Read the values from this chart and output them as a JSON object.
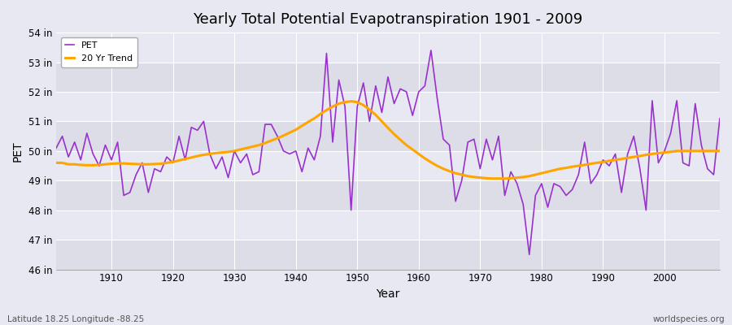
{
  "title": "Yearly Total Potential Evapotranspiration 1901 - 2009",
  "xlabel": "Year",
  "ylabel": "PET",
  "subtitle_left": "Latitude 18.25 Longitude -88.25",
  "subtitle_right": "worldspecies.org",
  "pet_color": "#9932CC",
  "trend_color": "#FFA500",
  "bg_dark": "#DDDDE8",
  "bg_light": "#E8E8F2",
  "grid_color": "#ffffff",
  "ylim_low": 46,
  "ylim_high": 54,
  "years": [
    1901,
    1902,
    1903,
    1904,
    1905,
    1906,
    1907,
    1908,
    1909,
    1910,
    1911,
    1912,
    1913,
    1914,
    1915,
    1916,
    1917,
    1918,
    1919,
    1920,
    1921,
    1922,
    1923,
    1924,
    1925,
    1926,
    1927,
    1928,
    1929,
    1930,
    1931,
    1932,
    1933,
    1934,
    1935,
    1936,
    1937,
    1938,
    1939,
    1940,
    1941,
    1942,
    1943,
    1944,
    1945,
    1946,
    1947,
    1948,
    1949,
    1950,
    1951,
    1952,
    1953,
    1954,
    1955,
    1956,
    1957,
    1958,
    1959,
    1960,
    1961,
    1962,
    1963,
    1964,
    1965,
    1966,
    1967,
    1968,
    1969,
    1970,
    1971,
    1972,
    1973,
    1974,
    1975,
    1976,
    1977,
    1978,
    1979,
    1980,
    1981,
    1982,
    1983,
    1984,
    1985,
    1986,
    1987,
    1988,
    1989,
    1990,
    1991,
    1992,
    1993,
    1994,
    1995,
    1996,
    1997,
    1998,
    1999,
    2000,
    2001,
    2002,
    2003,
    2004,
    2005,
    2006,
    2007,
    2008,
    2009
  ],
  "pet_values": [
    50.1,
    50.5,
    49.8,
    50.3,
    49.7,
    50.6,
    49.9,
    49.5,
    50.2,
    49.7,
    50.3,
    48.5,
    48.6,
    49.2,
    49.6,
    48.6,
    49.4,
    49.3,
    49.8,
    49.6,
    50.5,
    49.7,
    50.8,
    50.7,
    51.0,
    49.9,
    49.4,
    49.8,
    49.1,
    50.0,
    49.6,
    49.9,
    49.2,
    49.3,
    50.9,
    50.9,
    50.5,
    50.0,
    49.9,
    50.0,
    49.3,
    50.1,
    49.7,
    50.5,
    53.3,
    50.3,
    52.4,
    51.5,
    48.0,
    51.5,
    52.3,
    51.0,
    52.2,
    51.3,
    52.5,
    51.6,
    52.1,
    52.0,
    51.2,
    52.0,
    52.2,
    53.4,
    51.8,
    50.4,
    50.2,
    48.3,
    49.0,
    50.3,
    50.4,
    49.4,
    50.4,
    49.7,
    50.5,
    48.5,
    49.3,
    48.9,
    48.2,
    46.5,
    48.5,
    48.9,
    48.1,
    48.9,
    48.8,
    48.5,
    48.7,
    49.2,
    50.3,
    48.9,
    49.2,
    49.7,
    49.5,
    49.9,
    48.6,
    49.9,
    50.5,
    49.4,
    48.0,
    51.7,
    49.6,
    50.0,
    50.6,
    51.7,
    49.6,
    49.5,
    51.6,
    50.2,
    49.4,
    49.2,
    51.1
  ],
  "trend_values": [
    49.6,
    49.6,
    49.55,
    49.55,
    49.53,
    49.52,
    49.52,
    49.53,
    49.55,
    49.57,
    49.58,
    49.58,
    49.57,
    49.56,
    49.55,
    49.55,
    49.56,
    49.57,
    49.6,
    49.63,
    49.68,
    49.73,
    49.78,
    49.83,
    49.87,
    49.9,
    49.93,
    49.95,
    49.97,
    50.0,
    50.05,
    50.1,
    50.15,
    50.2,
    50.27,
    50.35,
    50.43,
    50.52,
    50.62,
    50.72,
    50.85,
    50.98,
    51.1,
    51.25,
    51.38,
    51.5,
    51.6,
    51.65,
    51.68,
    51.65,
    51.55,
    51.4,
    51.22,
    51.0,
    50.78,
    50.57,
    50.38,
    50.2,
    50.05,
    49.9,
    49.75,
    49.62,
    49.5,
    49.4,
    49.32,
    49.25,
    49.2,
    49.15,
    49.12,
    49.1,
    49.08,
    49.07,
    49.07,
    49.07,
    49.08,
    49.1,
    49.12,
    49.15,
    49.2,
    49.25,
    49.3,
    49.35,
    49.4,
    49.43,
    49.47,
    49.5,
    49.53,
    49.57,
    49.6,
    49.63,
    49.67,
    49.7,
    49.73,
    49.77,
    49.8,
    49.83,
    49.87,
    49.9,
    49.93,
    49.95,
    49.97,
    50.0,
    50.0,
    50.0,
    50.0,
    50.0,
    50.0,
    50.0,
    50.0
  ]
}
